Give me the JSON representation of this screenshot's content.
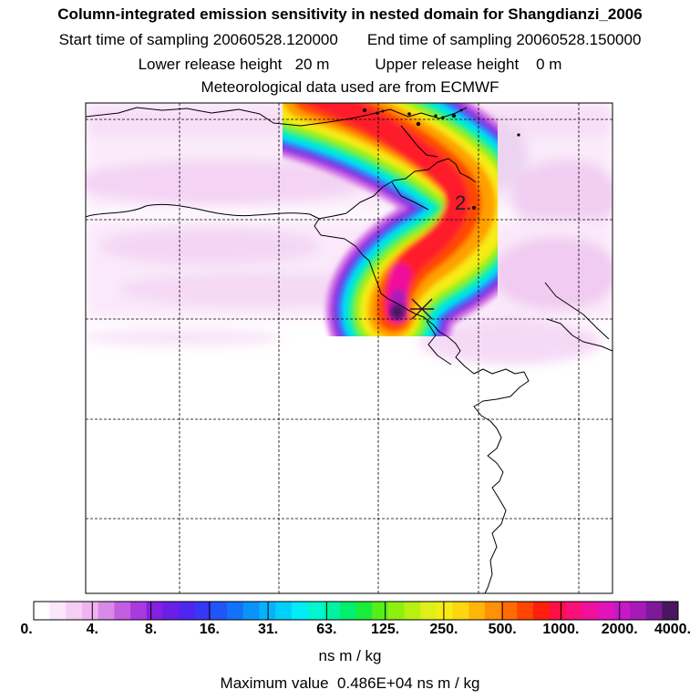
{
  "title": {
    "main": "Column-integrated emission sensitivity in nested domain for Shangdianzi_2006",
    "start_label": "Start time of sampling",
    "start_value": "20060528.120000",
    "end_label": "End time of sampling",
    "end_value": "20060528.150000",
    "lower_label": "Lower release height",
    "lower_value": "20 m",
    "upper_label": "Upper release height",
    "upper_value": "0 m",
    "met": "Meteorological data used are from ECMWF"
  },
  "map": {
    "station_label": "2.",
    "release_marker": "x-cross-icon"
  },
  "colorbar": {
    "labels": [
      "0.",
      "4.",
      "8.",
      "16.",
      "31.",
      "63.",
      "125.",
      "250.",
      "500.",
      "1000.",
      "2000.",
      "4000."
    ],
    "colors": [
      "#ffffff",
      "#fbe6fb",
      "#f5cdf5",
      "#eeb3f0",
      "#d88ae8",
      "#c25ee2",
      "#a83ae0",
      "#8420df",
      "#6a1ee6",
      "#4f25f0",
      "#3638f5",
      "#2055f8",
      "#1472fa",
      "#0a93fb",
      "#06b3fb",
      "#00cffa",
      "#00ecf6",
      "#00f6d0",
      "#00f3a2",
      "#00ef6e",
      "#1aec3a",
      "#55ee18",
      "#8ef010",
      "#b8f012",
      "#dff018",
      "#f6ec14",
      "#fed50e",
      "#ffb508",
      "#ff9104",
      "#ff6c02",
      "#ff4503",
      "#ff1f0c",
      "#ff0f45",
      "#fb1077",
      "#f0109c",
      "#e014b8",
      "#c817c8",
      "#a81ab8",
      "#7e1a9a",
      "#4a1660"
    ],
    "units": "ns m / kg"
  },
  "footer": {
    "max_label": "Maximum value",
    "max_value": "0.486E+04 ns m / kg"
  }
}
